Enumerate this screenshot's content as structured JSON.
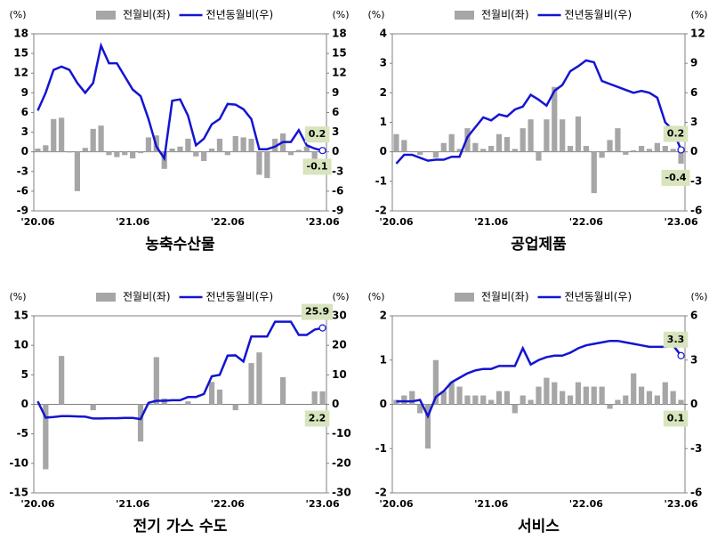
{
  "chart_data": [
    {
      "type": "combo",
      "title": "농축수산물",
      "ylabel": "(%)",
      "y2label": "(%)",
      "categories": [
        "'20.06",
        null,
        null,
        null,
        null,
        null,
        null,
        null,
        null,
        null,
        null,
        null,
        "'21.06",
        null,
        null,
        null,
        null,
        null,
        null,
        null,
        null,
        null,
        null,
        null,
        "'22.06",
        null,
        null,
        null,
        null,
        null,
        null,
        null,
        null,
        null,
        null,
        null,
        "'23.06"
      ],
      "ylim": [
        -9,
        18
      ],
      "yticks": [
        -9,
        -6,
        -3,
        0,
        3,
        6,
        9,
        12,
        15,
        18
      ],
      "y2lim": [
        -9,
        18
      ],
      "y2ticks": [
        -9,
        -6,
        -3,
        0,
        3,
        6,
        9,
        12,
        15,
        18
      ],
      "series": [
        {
          "name": "전월비(좌)",
          "type": "bar",
          "color": "#a6a6a6",
          "values": [
            0.5,
            1,
            5,
            5.2,
            -0.1,
            -6,
            0.6,
            3.5,
            4,
            -0.5,
            -0.8,
            -0.5,
            -1,
            -0.2,
            2.2,
            2.5,
            -2.6,
            0.5,
            0.8,
            2,
            -0.7,
            -1.4,
            0.5,
            2,
            -0.5,
            2.4,
            2.2,
            2,
            -3.5,
            -4,
            2,
            2.8,
            -0.5,
            0.3,
            0.8,
            -1.3,
            -0.1
          ],
          "value_labels": [
            null,
            null,
            null,
            null,
            null,
            null,
            null,
            null,
            null,
            null,
            null,
            null,
            null,
            null,
            null,
            null,
            null,
            null,
            null,
            null,
            null,
            null,
            null,
            null,
            null,
            null,
            null,
            null,
            null,
            null,
            null,
            null,
            null,
            null,
            null,
            null,
            "-0.1"
          ]
        },
        {
          "name": "전년동월비(우)",
          "type": "line",
          "axis": "y2",
          "color": "#1414d2",
          "values": [
            6.3,
            9,
            12.5,
            13,
            12.5,
            10.5,
            9,
            10.5,
            16.2,
            13.5,
            13.5,
            11.5,
            9.5,
            8.5,
            5,
            0.8,
            -1,
            7.8,
            8,
            5.5,
            1,
            2,
            4.2,
            5,
            7.3,
            7.2,
            6.5,
            5,
            0.4,
            0.4,
            0.8,
            1.5,
            1.5,
            3.3,
            1,
            0.5,
            0.2
          ],
          "value_labels": [
            null,
            null,
            null,
            null,
            null,
            null,
            null,
            null,
            null,
            null,
            null,
            null,
            null,
            null,
            null,
            null,
            null,
            null,
            null,
            null,
            null,
            null,
            null,
            null,
            null,
            null,
            null,
            null,
            null,
            null,
            null,
            null,
            null,
            null,
            null,
            null,
            "0.2"
          ]
        }
      ]
    },
    {
      "type": "combo",
      "title": "공업제품",
      "ylabel": "(%)",
      "y2label": "(%)",
      "categories": [
        "'20.06",
        null,
        null,
        null,
        null,
        null,
        null,
        null,
        null,
        null,
        null,
        null,
        "'21.06",
        null,
        null,
        null,
        null,
        null,
        null,
        null,
        null,
        null,
        null,
        null,
        "'22.06",
        null,
        null,
        null,
        null,
        null,
        null,
        null,
        null,
        null,
        null,
        null,
        "'23.06"
      ],
      "ylim": [
        -2,
        4
      ],
      "yticks": [
        -2,
        -1,
        0,
        1,
        2,
        3,
        4
      ],
      "y2lim": [
        -6,
        12
      ],
      "y2ticks": [
        -6,
        -3,
        0,
        3,
        6,
        9,
        12
      ],
      "series": [
        {
          "name": "전월비(좌)",
          "type": "bar",
          "color": "#a6a6a6",
          "values": [
            0.6,
            0.4,
            0,
            -0.1,
            0,
            -0.2,
            0.3,
            0.6,
            0.1,
            0.8,
            0.3,
            0.1,
            0.2,
            0.6,
            0.5,
            0.1,
            0.8,
            1.1,
            -0.3,
            1.1,
            2.2,
            1.1,
            0.2,
            1.2,
            0.2,
            -1.4,
            -0.2,
            0.4,
            0.8,
            -0.1,
            0.05,
            0.2,
            0.1,
            0.3,
            0.2,
            0.1,
            -0.4
          ],
          "value_labels": [
            null,
            null,
            null,
            null,
            null,
            null,
            null,
            null,
            null,
            null,
            null,
            null,
            null,
            null,
            null,
            null,
            null,
            null,
            null,
            null,
            null,
            null,
            null,
            null,
            null,
            null,
            null,
            null,
            null,
            null,
            null,
            null,
            null,
            null,
            null,
            null,
            "-0.4"
          ]
        },
        {
          "name": "전년동월비(우)",
          "type": "line",
          "axis": "y2",
          "color": "#1414d2",
          "values": [
            -1.2,
            -0.3,
            -0.3,
            -0.6,
            -0.9,
            -0.8,
            -0.8,
            -0.5,
            -0.5,
            1.5,
            2.5,
            3.5,
            3.2,
            3.8,
            3.6,
            4.3,
            4.6,
            5.8,
            5.3,
            4.7,
            6.2,
            6.8,
            8.2,
            8.7,
            9.3,
            9.1,
            7.2,
            6.9,
            6.6,
            6.3,
            6,
            6.2,
            6,
            5.5,
            3,
            2.2,
            0.2
          ],
          "value_labels": [
            null,
            null,
            null,
            null,
            null,
            null,
            null,
            null,
            null,
            null,
            null,
            null,
            null,
            null,
            null,
            null,
            null,
            null,
            null,
            null,
            null,
            null,
            null,
            null,
            null,
            null,
            null,
            null,
            null,
            null,
            null,
            null,
            null,
            null,
            null,
            null,
            "0.2"
          ]
        }
      ]
    },
    {
      "type": "combo",
      "title": "전기 가스 수도",
      "ylabel": "(%)",
      "y2label": "(%)",
      "categories": [
        "'20.06",
        null,
        null,
        null,
        null,
        null,
        null,
        null,
        null,
        null,
        null,
        null,
        "'21.06",
        null,
        null,
        null,
        null,
        null,
        null,
        null,
        null,
        null,
        null,
        null,
        "'22.06",
        null,
        null,
        null,
        null,
        null,
        null,
        null,
        null,
        null,
        null,
        null,
        "'23.06"
      ],
      "ylim": [
        -15,
        15
      ],
      "yticks": [
        -15,
        -10,
        -5,
        0,
        5,
        10,
        15
      ],
      "y2lim": [
        -30,
        30
      ],
      "y2ticks": [
        -30,
        -20,
        -10,
        0,
        10,
        20,
        30
      ],
      "series": [
        {
          "name": "전월비(좌)",
          "type": "bar",
          "color": "#a6a6a6",
          "values": [
            0,
            -11,
            0,
            8.2,
            0,
            0,
            0,
            -1,
            0,
            0,
            0,
            0,
            0,
            -6.3,
            0,
            8,
            1,
            0,
            0,
            0.5,
            0,
            0,
            3.8,
            2.5,
            0,
            -1,
            0,
            7,
            8.8,
            0,
            0,
            4.6,
            0,
            0,
            0,
            2.2,
            2.2
          ],
          "value_labels": [
            null,
            null,
            null,
            null,
            null,
            null,
            null,
            null,
            null,
            null,
            null,
            null,
            null,
            null,
            null,
            null,
            null,
            null,
            null,
            null,
            null,
            null,
            null,
            null,
            null,
            null,
            null,
            null,
            null,
            null,
            null,
            null,
            null,
            null,
            null,
            null,
            "2.2"
          ]
        },
        {
          "name": "전년동월비(우)",
          "type": "line",
          "axis": "y2",
          "color": "#1414d2",
          "values": [
            1,
            -4.5,
            -4.3,
            -4,
            -4,
            -4.1,
            -4.2,
            -4.8,
            -4.8,
            -4.7,
            -4.7,
            -4.6,
            -4.6,
            -5,
            0.5,
            1.2,
            1.2,
            1.4,
            1.4,
            2.5,
            2.5,
            3.5,
            9.5,
            10,
            16.5,
            16.6,
            14.5,
            23,
            23,
            23,
            28,
            28,
            28,
            23.5,
            23.5,
            25.3,
            25.9
          ],
          "value_labels": [
            null,
            null,
            null,
            null,
            null,
            null,
            null,
            null,
            null,
            null,
            null,
            null,
            null,
            null,
            null,
            null,
            null,
            null,
            null,
            null,
            null,
            null,
            null,
            null,
            null,
            null,
            null,
            null,
            null,
            null,
            null,
            null,
            null,
            null,
            null,
            null,
            "25.9"
          ]
        }
      ]
    },
    {
      "type": "combo",
      "title": "서비스",
      "ylabel": "(%)",
      "y2label": "(%)",
      "categories": [
        "'20.06",
        null,
        null,
        null,
        null,
        null,
        null,
        null,
        null,
        null,
        null,
        null,
        "'21.06",
        null,
        null,
        null,
        null,
        null,
        null,
        null,
        null,
        null,
        null,
        null,
        "'22.06",
        null,
        null,
        null,
        null,
        null,
        null,
        null,
        null,
        null,
        null,
        null,
        "'23.06"
      ],
      "ylim": [
        -2,
        2
      ],
      "yticks": [
        -2,
        -1,
        0,
        1,
        2
      ],
      "y2lim": [
        -6,
        6
      ],
      "y2ticks": [
        -6,
        -3,
        0,
        3,
        6
      ],
      "series": [
        {
          "name": "전월비(좌)",
          "type": "bar",
          "color": "#a6a6a6",
          "values": [
            0.1,
            0.2,
            0.3,
            -0.2,
            -1,
            1,
            0.3,
            0.5,
            0.4,
            0.2,
            0.2,
            0.2,
            0.1,
            0.3,
            0.3,
            -0.2,
            0.2,
            0.1,
            0.4,
            0.6,
            0.5,
            0.3,
            0.2,
            0.5,
            0.4,
            0.4,
            0.4,
            -0.1,
            0.1,
            0.2,
            0.7,
            0.4,
            0.3,
            0.2,
            0.5,
            0.3,
            0.1
          ],
          "value_labels": [
            null,
            null,
            null,
            null,
            null,
            null,
            null,
            null,
            null,
            null,
            null,
            null,
            null,
            null,
            null,
            null,
            null,
            null,
            null,
            null,
            null,
            null,
            null,
            null,
            null,
            null,
            null,
            null,
            null,
            null,
            null,
            null,
            null,
            null,
            null,
            null,
            "0.1"
          ]
        },
        {
          "name": "전년동월비(우)",
          "type": "line",
          "axis": "y2",
          "color": "#1414d2",
          "values": [
            0.2,
            0.2,
            0.2,
            0.3,
            -0.8,
            0.5,
            0.9,
            1.5,
            1.8,
            2.1,
            2.3,
            2.4,
            2.4,
            2.6,
            2.6,
            2.6,
            3.8,
            2.7,
            3,
            3.2,
            3.3,
            3.3,
            3.5,
            3.8,
            4,
            4.1,
            4.2,
            4.3,
            4.3,
            4.2,
            4.1,
            4,
            3.9,
            3.9,
            3.9,
            4,
            3.3
          ],
          "value_labels": [
            null,
            null,
            null,
            null,
            null,
            null,
            null,
            null,
            null,
            null,
            null,
            null,
            null,
            null,
            null,
            null,
            null,
            null,
            null,
            null,
            null,
            null,
            null,
            null,
            null,
            null,
            null,
            null,
            null,
            null,
            null,
            null,
            null,
            null,
            null,
            null,
            "3.3"
          ]
        }
      ]
    }
  ]
}
